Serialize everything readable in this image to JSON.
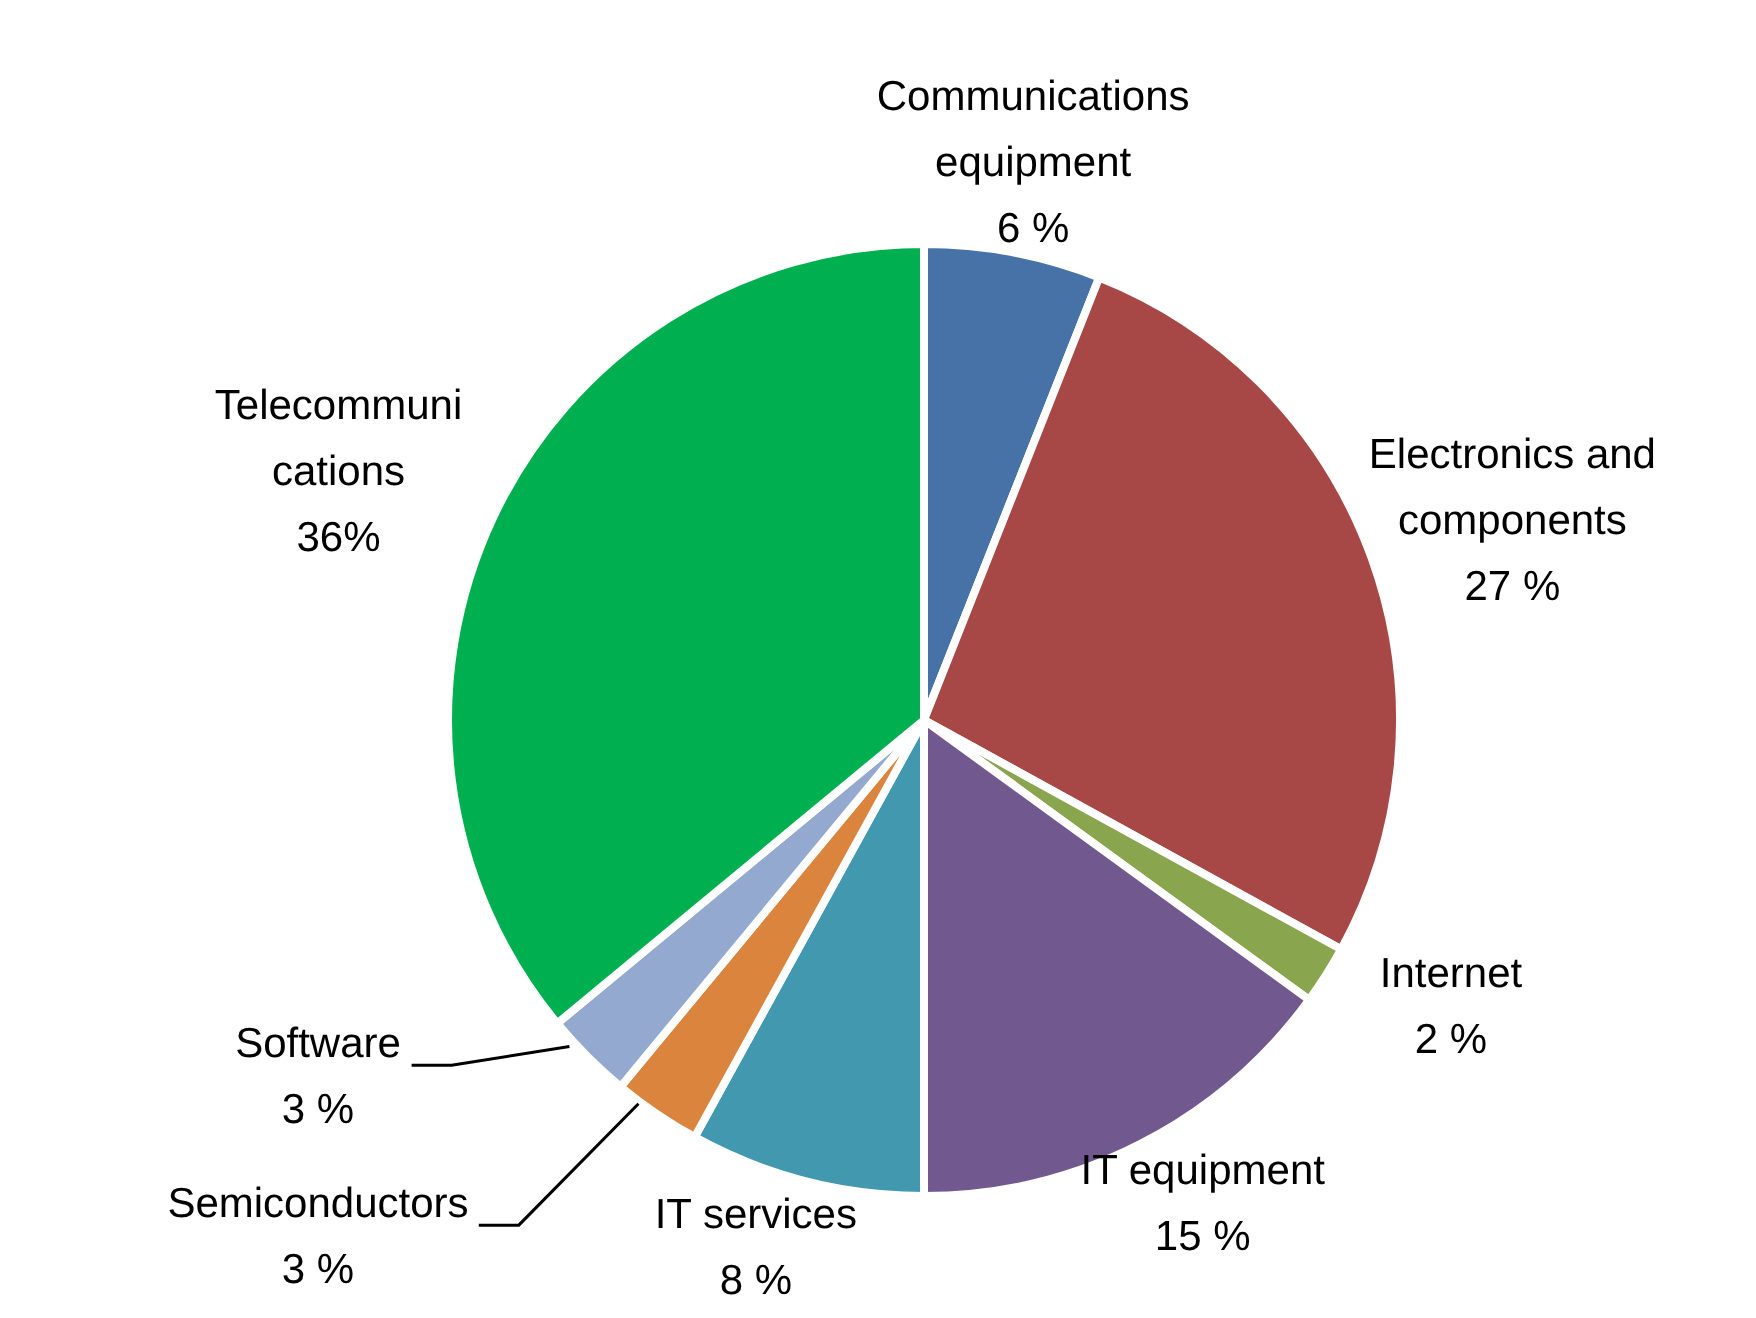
{
  "chart_data": {
    "type": "pie",
    "categories": [
      "Communications equipment",
      "Electronics and components",
      "Internet",
      "IT equipment",
      "IT services",
      "Semiconductors",
      "Software",
      "Telecommunications"
    ],
    "values": [
      6,
      27,
      2,
      15,
      8,
      3,
      3,
      36
    ],
    "value_labels": [
      "6 %",
      "27 %",
      "2 %",
      "15 %",
      "8 %",
      "3 %",
      "3 %",
      "36%"
    ],
    "colors": [
      "#4672a8",
      "#a84846",
      "#89a54e",
      "#71588f",
      "#4198af",
      "#db843d",
      "#93a9cf",
      "#00b050"
    ],
    "legend": false
  }
}
